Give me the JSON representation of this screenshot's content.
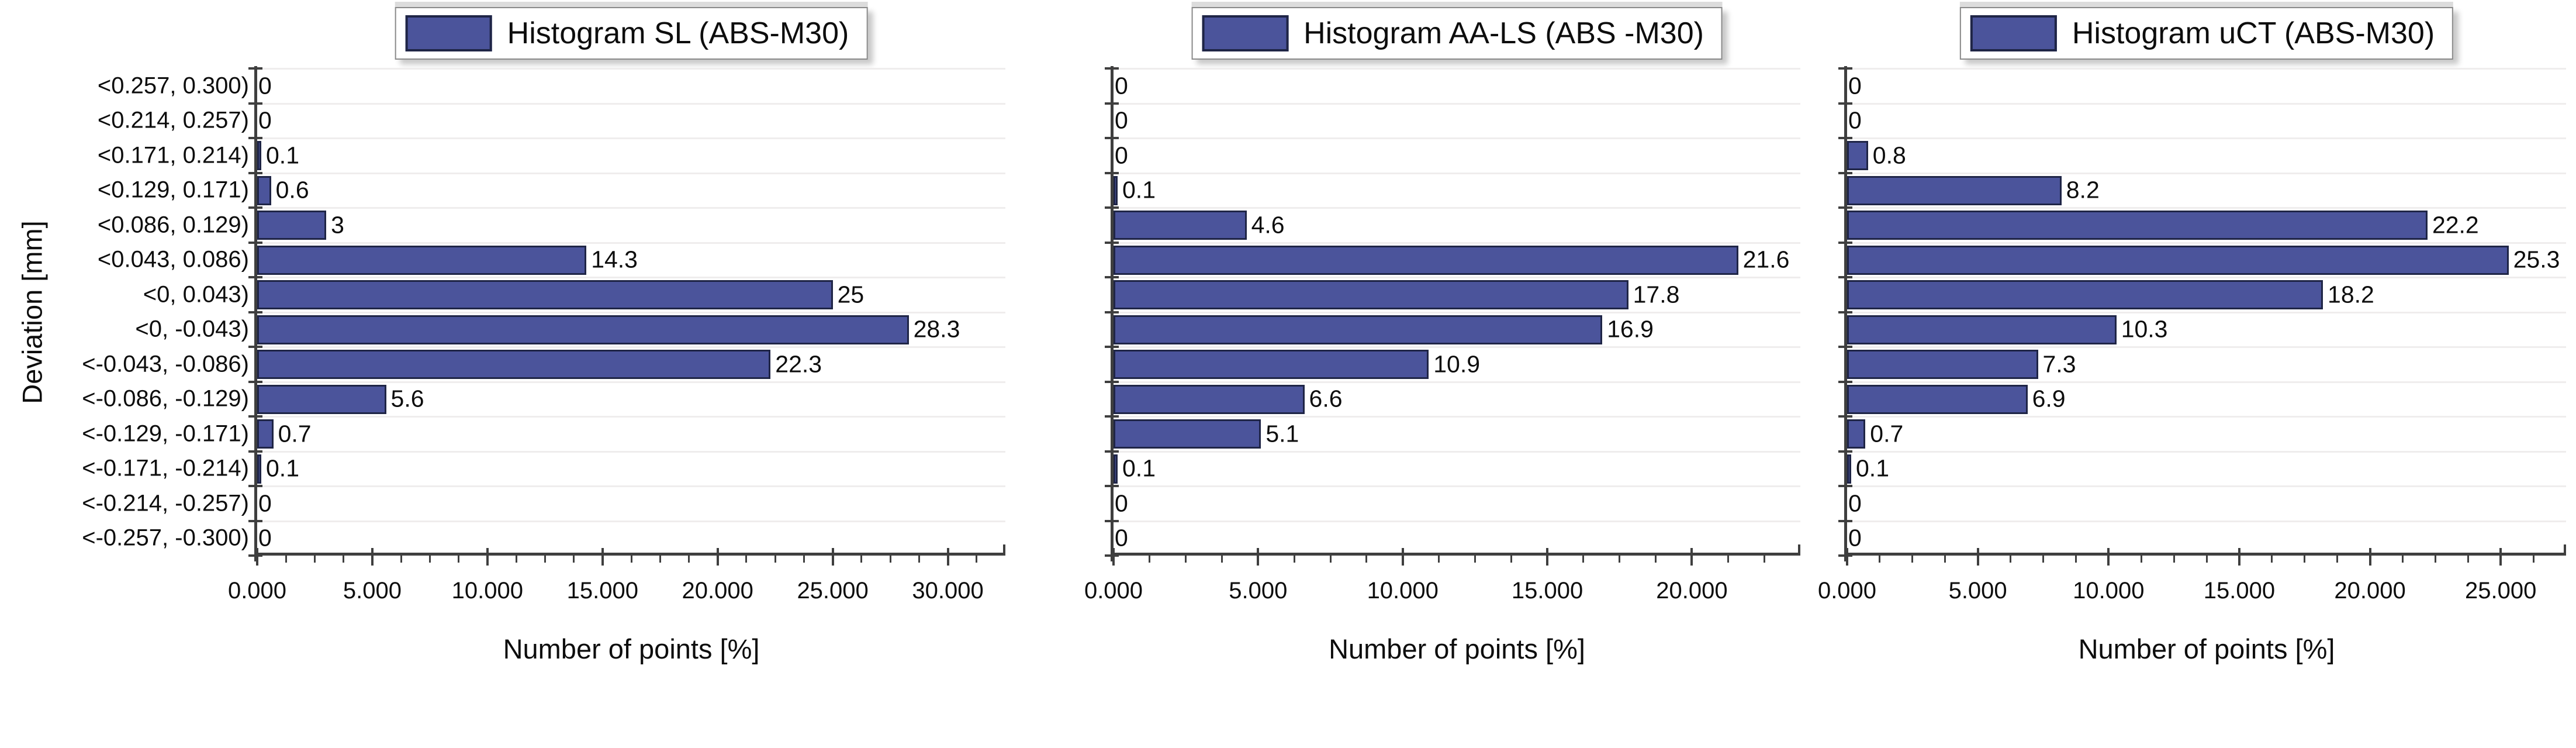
{
  "figure": {
    "xlabel": "Number of points [%]",
    "ylabel": "Deviation [mm]"
  },
  "chart_data": {
    "type": "bar",
    "orientation": "horizontal",
    "xlabel": "Number of points [%]",
    "ylabel": "Deviation [mm]",
    "grid": "horizontal-light",
    "legend_position": "top-center",
    "categories": [
      "<0.257, 0.300)",
      "<0.214, 0.257)",
      "<0.171, 0.214)",
      "<0.129, 0.171)",
      "<0.086, 0.129)",
      "<0.043, 0.086)",
      "<0, 0.043)",
      "<0, -0.043)",
      "<-0.043, -0.086)",
      "<-0.086, -0.129)",
      "<-0.129, -0.171)",
      "<-0.171, -0.214)",
      "<-0.214, -0.257)",
      "<-0.257, -0.300)"
    ],
    "series": [
      {
        "name": "Histogram SL (ABS-M30)",
        "values": [
          0,
          0,
          0.1,
          0.6,
          3,
          14.3,
          25,
          28.3,
          22.3,
          5.6,
          0.7,
          0.1,
          0,
          0
        ],
        "xlim": [
          0,
          32.5
        ],
        "xticks": [
          0,
          5,
          10,
          15,
          20,
          25,
          30
        ],
        "xtick_labels": [
          "0.000",
          "5.000",
          "10.000",
          "15.000",
          "20.000",
          "25.000",
          "30.000"
        ]
      },
      {
        "name": "Histogram AA-LS (ABS -M30)",
        "values": [
          0,
          0,
          0,
          0.1,
          4.6,
          21.6,
          17.8,
          16.9,
          10.9,
          6.6,
          5.1,
          0.1,
          0,
          0
        ],
        "xlim": [
          0,
          23.75
        ],
        "xticks": [
          0,
          5,
          10,
          15,
          20
        ],
        "xtick_labels": [
          "0.000",
          "5.000",
          "10.000",
          "15.000",
          "20.000"
        ]
      },
      {
        "name": "Histogram uCT (ABS-M30)",
        "values": [
          0,
          0,
          0.8,
          8.2,
          22.2,
          25.3,
          18.2,
          10.3,
          7.3,
          6.9,
          0.7,
          0.1,
          0,
          0
        ],
        "xlim": [
          0,
          27.5
        ],
        "xticks": [
          0,
          5,
          10,
          15,
          20,
          25
        ],
        "xtick_labels": [
          "0.000",
          "5.000",
          "10.000",
          "15.000",
          "20.000",
          "25.000"
        ]
      }
    ],
    "minor_tick_step": 1.25,
    "colors": {
      "bar_fill": "#4b549b",
      "bar_border": "#1f2546",
      "axis": "#3f3f3f",
      "gridline": "#efeded"
    }
  }
}
